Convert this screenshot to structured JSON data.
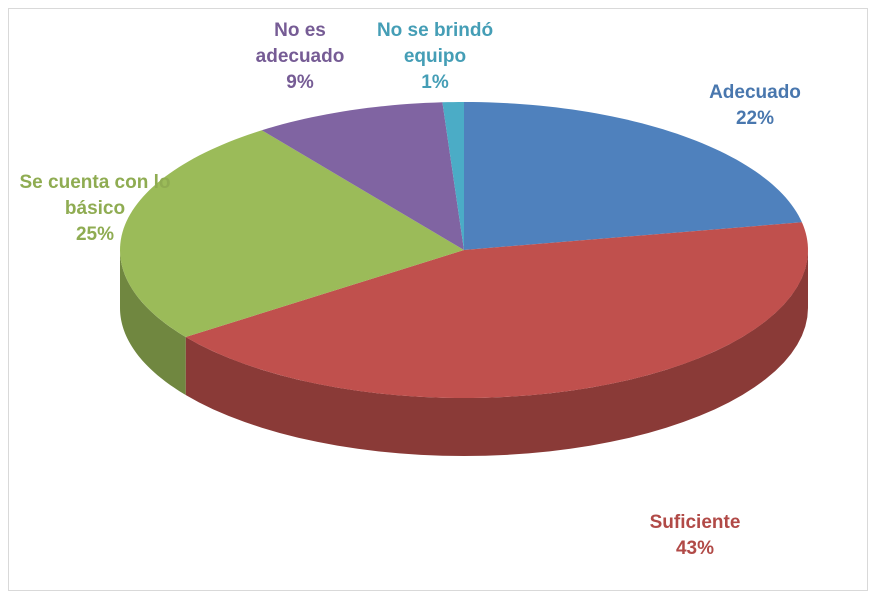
{
  "chart_data": {
    "type": "pie",
    "categories": [
      "Adecuado",
      "Suficiente",
      "Se cuenta con lo básico",
      "No es adecuado",
      "No se brindó equipo"
    ],
    "values": [
      22,
      43,
      25,
      9,
      1
    ],
    "value_labels": [
      "22%",
      "43%",
      "25%",
      "9%",
      "1%"
    ],
    "colors": [
      "#4f81bd",
      "#c0504d",
      "#9bbb59",
      "#8064a2",
      "#4bacc6"
    ]
  }
}
